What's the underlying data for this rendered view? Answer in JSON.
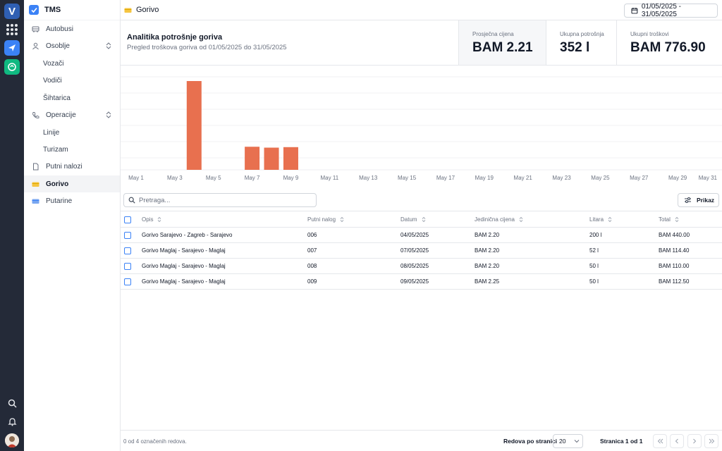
{
  "app": {
    "logo_letter": "V",
    "name": "TMS"
  },
  "sidebar": {
    "items": [
      {
        "label": "Autobusi",
        "icon": "bus-icon"
      },
      {
        "label": "Osoblje",
        "icon": "user-icon",
        "expandable": true
      },
      {
        "label": "Vozači",
        "sub": true
      },
      {
        "label": "Vodiči",
        "sub": true
      },
      {
        "label": "Šihtarica",
        "sub": true
      },
      {
        "label": "Operacije",
        "icon": "phone-icon",
        "expandable": true
      },
      {
        "label": "Linije",
        "sub": true
      },
      {
        "label": "Turizam",
        "sub": true
      },
      {
        "label": "Putni nalozi",
        "icon": "document-icon"
      },
      {
        "label": "Gorivo",
        "icon": "fuel-card-icon",
        "active": true
      },
      {
        "label": "Putarine",
        "icon": "toll-card-icon"
      }
    ]
  },
  "topbar": {
    "title": "Gorivo",
    "date_range": "01/05/2025 - 31/05/2025"
  },
  "analytics": {
    "title": "Analitika potrošnje goriva",
    "subtitle": "Pregled troškova goriva od 01/05/2025 do 31/05/2025",
    "kpis": [
      {
        "label": "Prosječna cijena",
        "value": "BAM 2.21"
      },
      {
        "label": "Ukupna potrošnja",
        "value": "352 l"
      },
      {
        "label": "Ukupni troškovi",
        "value": "BAM 776.90"
      }
    ]
  },
  "chart_data": {
    "type": "bar",
    "bar_color": "#e8704f",
    "x_tick_labels": [
      "May 1",
      "May 3",
      "May 5",
      "May 7",
      "May 9",
      "May 11",
      "May 13",
      "May 15",
      "May 17",
      "May 19",
      "May 21",
      "May 23",
      "May 25",
      "May 27",
      "May 29",
      "May 31"
    ],
    "x_start_day": 1,
    "x_end_day": 31,
    "x": [
      "May 4",
      "May 7",
      "May 8",
      "May 9"
    ],
    "values": [
      440.0,
      114.4,
      110.0,
      112.5
    ],
    "grid": true
  },
  "table": {
    "search_placeholder": "Pretraga...",
    "view_button": "Prikaz",
    "columns": [
      "Opis",
      "Putni nalog",
      "Datum",
      "Jedinična cijena",
      "Litara",
      "Total"
    ],
    "rows": [
      {
        "opis": "Gorivo Sarajevo - Zagreb - Sarajevo",
        "nalog": "006",
        "datum": "04/05/2025",
        "cijena": "BAM 2.20",
        "litara": "200 l",
        "total": "BAM 440.00"
      },
      {
        "opis": "Gorivo Maglaj - Sarajevo - Maglaj",
        "nalog": "007",
        "datum": "07/05/2025",
        "cijena": "BAM 2.20",
        "litara": "52 l",
        "total": "BAM 114.40"
      },
      {
        "opis": "Gorivo Maglaj - Sarajevo - Maglaj",
        "nalog": "008",
        "datum": "08/05/2025",
        "cijena": "BAM 2.20",
        "litara": "50 l",
        "total": "BAM 110.00"
      },
      {
        "opis": "Gorivo Maglaj - Sarajevo - Maglaj",
        "nalog": "009",
        "datum": "09/05/2025",
        "cijena": "BAM 2.25",
        "litara": "50 l",
        "total": "BAM 112.50"
      }
    ]
  },
  "footer": {
    "selection": "0 od 4 označenih redova.",
    "rows_per_page_label": "Redova po stranici",
    "rows_per_page": "20",
    "page_label": "Stranica 1 od 1"
  },
  "colors": {
    "accent": "#3b82f6",
    "bar": "#e8704f",
    "rail": "#242a38",
    "fuel_icon": "#f5c542"
  }
}
